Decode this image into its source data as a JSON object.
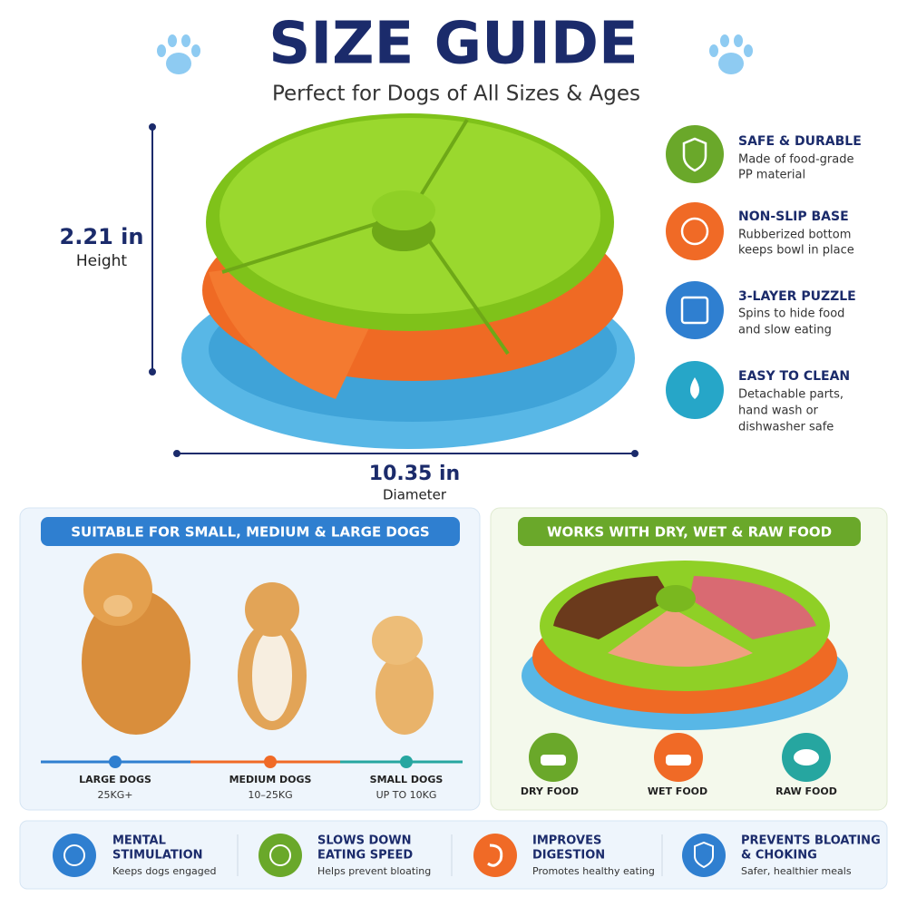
{
  "header": {
    "title": "SIZE GUIDE",
    "subtitle": "Perfect for Dogs of All Sizes & Ages"
  },
  "dimensions": {
    "height": {
      "value": "2.21 in",
      "label": "Height"
    },
    "diameter": {
      "value": "10.35 in",
      "label": "Diameter"
    }
  },
  "features": [
    {
      "title": "SAFE & DURABLE",
      "text": [
        "Made of food-grade",
        "PP material"
      ]
    },
    {
      "title": "NON-SLIP BASE",
      "text": [
        "Rubberized bottom",
        "keeps bowl in place"
      ]
    },
    {
      "title": "3-LAYER PUZZLE",
      "text": [
        "Spins to hide food",
        "and slow eating"
      ]
    },
    {
      "title": "EASY TO CLEAN",
      "text": [
        "Detachable parts,",
        "hand wash or",
        "dishwasher safe"
      ]
    }
  ],
  "dog_sizes": {
    "title": "SUITABLE FOR SMALL, MEDIUM & LARGE DOGS",
    "items": [
      {
        "name": "LARGE DOGS",
        "weight": "25KG+"
      },
      {
        "name": "MEDIUM DOGS",
        "weight": "10–25KG"
      },
      {
        "name": "SMALL DOGS",
        "weight": "UP TO 10KG"
      }
    ]
  },
  "food": {
    "title": "WORKS WITH DRY, WET & RAW FOOD",
    "items": [
      "DRY FOOD",
      "WET FOOD",
      "RAW FOOD"
    ]
  },
  "benefits": [
    {
      "title": [
        "MENTAL",
        "STIMULATION"
      ],
      "text": "Keeps dogs engaged"
    },
    {
      "title": [
        "SLOWS DOWN",
        "EATING SPEED"
      ],
      "text": "Helps prevent bloating"
    },
    {
      "title": [
        "IMPROVES",
        "DIGESTION"
      ],
      "text": "Promotes healthy eating"
    },
    {
      "title": [
        "PREVENTS BLOATING",
        "& CHOKING"
      ],
      "text": "Safer, healthier meals"
    }
  ]
}
